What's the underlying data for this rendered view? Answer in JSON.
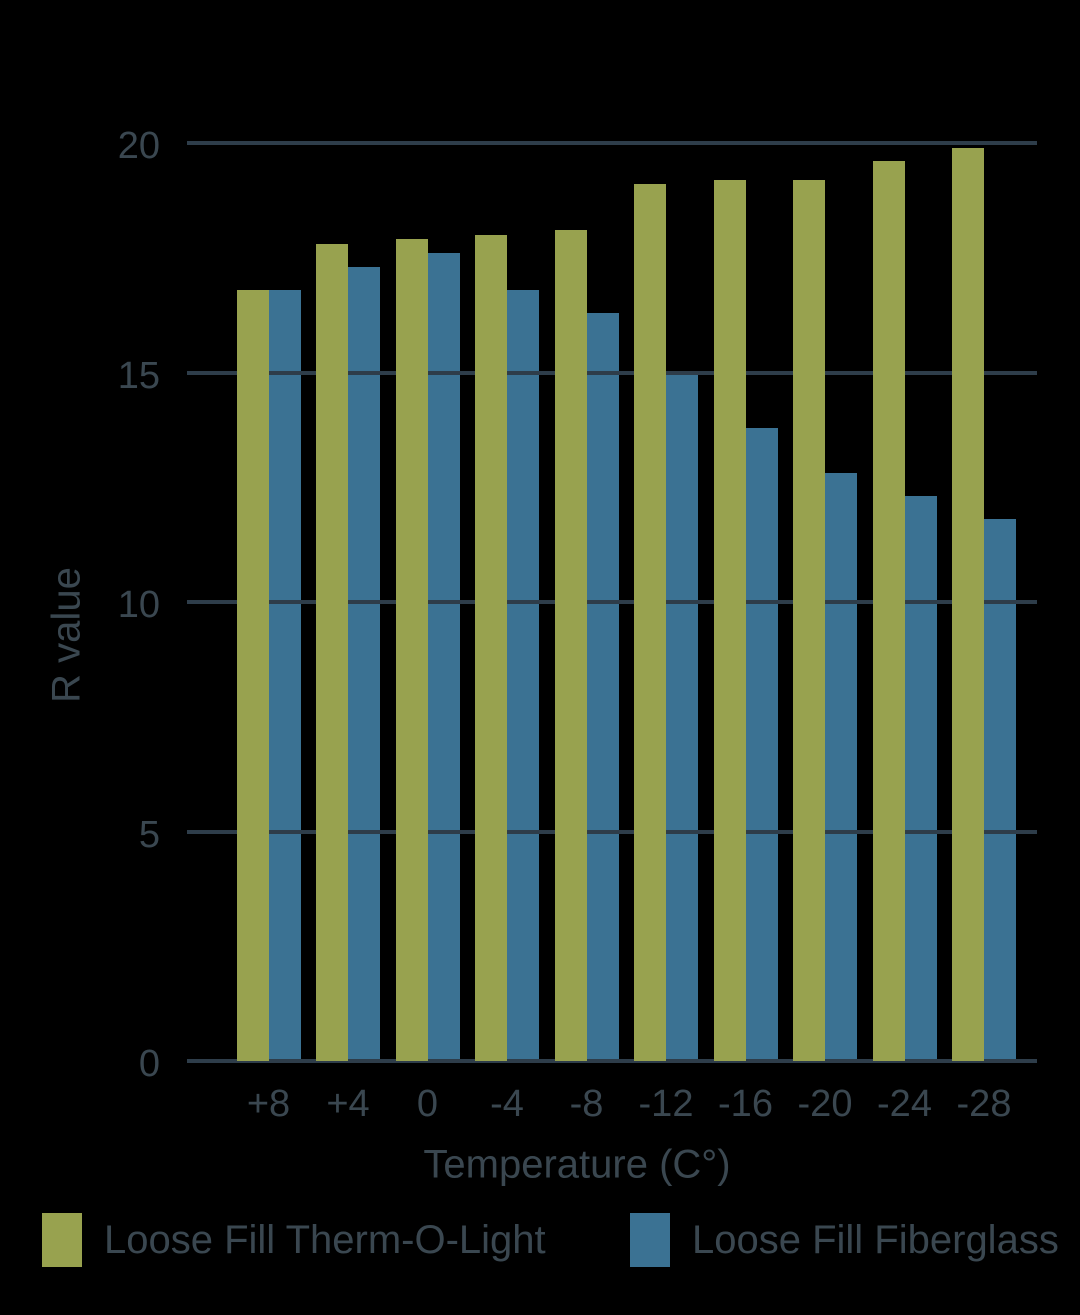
{
  "chart": {
    "y_axis_label": "R value",
    "x_axis_label": "Temperature (C°)"
  },
  "legend": {
    "items": [
      {
        "label": "Loose Fill Therm-O-Light",
        "color": "#98A24F"
      },
      {
        "label": "Loose Fill Fiberglass",
        "color": "#3B7293"
      }
    ]
  },
  "chart_data": {
    "type": "bar",
    "title": "",
    "xlabel": "Temperature (C°)",
    "ylabel": "R value",
    "categories": [
      "+8",
      "+4",
      "0",
      "-4",
      "-8",
      "-12",
      "-16",
      "-20",
      "-24",
      "-28"
    ],
    "series": [
      {
        "name": "Loose Fill Therm-O-Light",
        "color": "#98A24F",
        "values": [
          16.8,
          17.8,
          17.9,
          18.0,
          18.1,
          19.1,
          19.2,
          19.2,
          19.6,
          19.9
        ]
      },
      {
        "name": "Loose Fill Fiberglass",
        "color": "#3B7293",
        "values": [
          16.8,
          17.3,
          17.6,
          16.8,
          16.3,
          15.0,
          13.8,
          12.8,
          12.3,
          11.8
        ]
      }
    ],
    "ylim": [
      0,
      20
    ],
    "yticks": [
      0,
      5,
      10,
      15,
      20
    ],
    "grid": true,
    "legend_position": "bottom",
    "background_color": "#000000",
    "text_color": "#3A4750",
    "gridline_color": "#2E3D4A"
  }
}
